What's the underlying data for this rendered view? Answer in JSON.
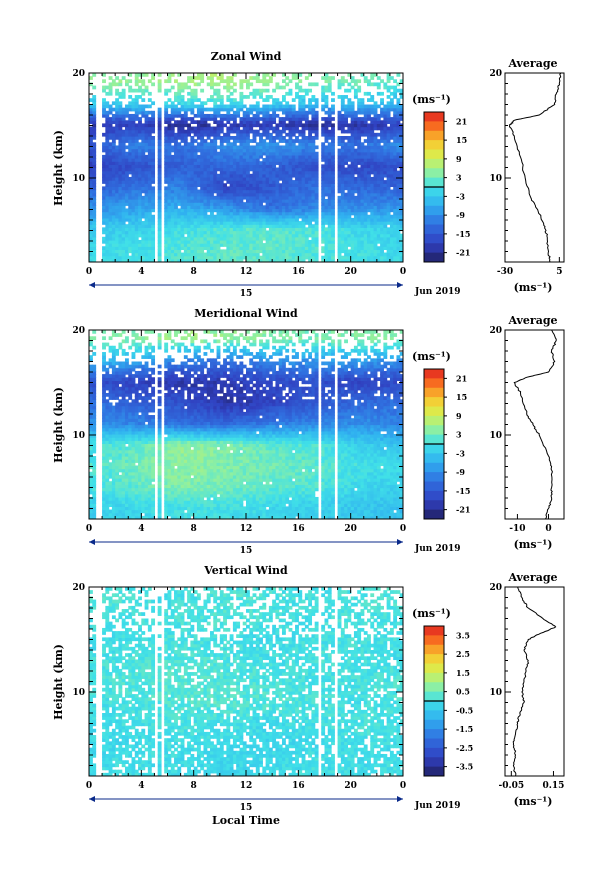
{
  "panels": [
    {
      "title": "Zonal Wind",
      "ylabel": "Height (km)",
      "unit": "(ms⁻¹)",
      "colorbar_ticks": [
        "21",
        "15",
        "9",
        "3",
        "-3",
        "-9",
        "-15",
        "-21"
      ],
      "avg_title": "Average",
      "avg_xticks": [
        "-30",
        "5"
      ],
      "avg_unit": "(ms⁻¹)"
    },
    {
      "title": "Meridional Wind",
      "ylabel": "Height (km)",
      "unit": "(ms⁻¹)",
      "colorbar_ticks": [
        "21",
        "15",
        "9",
        "3",
        "-3",
        "-9",
        "-15",
        "-21"
      ],
      "avg_title": "Average",
      "avg_xticks": [
        "-10",
        "0"
      ],
      "avg_unit": "(ms⁻¹)"
    },
    {
      "title": "Vertical Wind",
      "ylabel": "Height (km)",
      "unit": "(ms⁻¹)",
      "colorbar_ticks": [
        "3.5",
        "2.5",
        "1.5",
        "0.5",
        "-0.5",
        "-1.5",
        "-2.5",
        "-3.5"
      ],
      "avg_title": "Average",
      "avg_xticks": [
        "-0.05",
        "0.15"
      ],
      "avg_unit": "(ms⁻¹)"
    }
  ],
  "xlabel": "Local Time",
  "date_label": "Jun 2019",
  "day_label": "15",
  "x_ticks": [
    "0",
    "4",
    "8",
    "12",
    "16",
    "20",
    "0"
  ],
  "y_ticks": [
    "20",
    "10"
  ],
  "chart_data": [
    {
      "type": "heatmap",
      "title": "Zonal Wind",
      "xlabel": "Local Time",
      "ylabel": "Height (km)",
      "xlim": [
        0,
        24
      ],
      "ylim": [
        2,
        20
      ],
      "colorbar_range": [
        -24,
        24
      ],
      "grid": false,
      "data_gaps_hours": [
        [
          0.6,
          0.9
        ],
        [
          4.9,
          5.15
        ],
        [
          5.5,
          5.75
        ],
        [
          17.5,
          17.75
        ],
        [
          18.7,
          19.0
        ]
      ],
      "rows": [
        {
          "h": 19,
          "v": [
            5,
            5,
            6,
            7,
            5,
            4,
            3,
            2
          ]
        },
        {
          "h": 17,
          "v": [
            -3,
            -2,
            -1,
            0,
            -2,
            -4,
            -3,
            -5
          ]
        },
        {
          "h": 15,
          "v": [
            -20,
            -18,
            -22,
            -20,
            -19,
            -21,
            -20,
            -18
          ]
        },
        {
          "h": 13,
          "v": [
            -15,
            -10,
            -12,
            -9,
            -8,
            -10,
            -12,
            -8
          ]
        },
        {
          "h": 11,
          "v": [
            -18,
            -16,
            -14,
            -13,
            -14,
            -16,
            -17,
            -16
          ]
        },
        {
          "h": 9,
          "v": [
            -14,
            -12,
            -10,
            -18,
            -15,
            -12,
            -13,
            -14
          ]
        },
        {
          "h": 7,
          "v": [
            -9,
            -7,
            -6,
            -8,
            -12,
            -10,
            -9,
            -8
          ]
        },
        {
          "h": 5,
          "v": [
            -3,
            -2,
            0,
            1,
            2,
            1,
            -1,
            -2
          ]
        },
        {
          "h": 3,
          "v": [
            -1,
            0,
            1,
            2,
            2,
            1,
            0,
            -1
          ]
        }
      ],
      "average_profile": {
        "title": "Average",
        "xlim": [
          -30,
          8
        ],
        "points": [
          [
            6,
            20
          ],
          [
            5,
            19
          ],
          [
            3,
            18
          ],
          [
            2,
            17
          ],
          [
            -8,
            16
          ],
          [
            -24,
            15.5
          ],
          [
            -27,
            15
          ],
          [
            -24,
            14
          ],
          [
            -20,
            12
          ],
          [
            -17,
            10
          ],
          [
            -13,
            8
          ],
          [
            -9,
            7
          ],
          [
            -5,
            5.5
          ],
          [
            -3,
            4.5
          ],
          [
            -2,
            3
          ],
          [
            -1,
            2
          ]
        ]
      }
    },
    {
      "type": "heatmap",
      "title": "Meridional Wind",
      "xlabel": "Local Time",
      "ylabel": "Height (km)",
      "xlim": [
        0,
        24
      ],
      "ylim": [
        2,
        20
      ],
      "colorbar_range": [
        -24,
        24
      ],
      "grid": false,
      "data_gaps_hours": [
        [
          0.6,
          0.9
        ],
        [
          4.9,
          5.15
        ],
        [
          5.5,
          5.75
        ],
        [
          17.5,
          17.75
        ],
        [
          18.7,
          19.0
        ]
      ],
      "rows": [
        {
          "h": 19,
          "v": [
            3,
            4,
            6,
            5,
            4,
            3,
            5,
            4
          ]
        },
        {
          "h": 17,
          "v": [
            -4,
            -6,
            -10,
            -12,
            -9,
            -8,
            -7,
            -9
          ]
        },
        {
          "h": 15,
          "v": [
            -16,
            -18,
            -20,
            -19,
            -17,
            -16,
            -18,
            -17
          ]
        },
        {
          "h": 13,
          "v": [
            -12,
            -14,
            -16,
            -20,
            -18,
            -15,
            -13,
            -12
          ]
        },
        {
          "h": 11,
          "v": [
            -9,
            -10,
            -12,
            -13,
            -11,
            -10,
            -9,
            -10
          ]
        },
        {
          "h": 9,
          "v": [
            0,
            2,
            5,
            4,
            2,
            1,
            -2,
            -4
          ]
        },
        {
          "h": 7,
          "v": [
            1,
            3,
            5,
            4,
            3,
            2,
            0,
            -1
          ]
        },
        {
          "h": 5,
          "v": [
            0,
            2,
            4,
            3,
            2,
            1,
            -1,
            -2
          ]
        },
        {
          "h": 3,
          "v": [
            -2,
            -1,
            0,
            0,
            -1,
            -2,
            -3,
            -4
          ]
        }
      ],
      "average_profile": {
        "title": "Average",
        "xlim": [
          -14,
          5
        ],
        "points": [
          [
            1,
            20
          ],
          [
            2.5,
            19
          ],
          [
            1,
            18
          ],
          [
            2,
            17
          ],
          [
            0,
            16
          ],
          [
            -7,
            15.5
          ],
          [
            -11,
            15
          ],
          [
            -9,
            14
          ],
          [
            -7,
            12
          ],
          [
            -5,
            11
          ],
          [
            -3,
            10
          ],
          [
            0,
            8
          ],
          [
            1,
            7
          ],
          [
            1,
            5
          ],
          [
            1,
            4
          ],
          [
            0,
            3
          ],
          [
            -1,
            2
          ]
        ]
      }
    },
    {
      "type": "heatmap",
      "title": "Vertical Wind",
      "xlabel": "Local Time",
      "ylabel": "Height (km)",
      "xlim": [
        0,
        24
      ],
      "ylim": [
        2,
        20
      ],
      "colorbar_range": [
        -4,
        4
      ],
      "grid": false,
      "data_gaps_hours": [
        [
          0.6,
          0.9
        ],
        [
          4.9,
          5.15
        ],
        [
          5.5,
          5.75
        ],
        [
          17.5,
          17.75
        ],
        [
          18.7,
          19.0
        ]
      ],
      "rows": [
        {
          "h": 19,
          "v": [
            0.2,
            0.1,
            0.0,
            0.2,
            0.1,
            0.0,
            0.1,
            0.2
          ]
        },
        {
          "h": 17,
          "v": [
            0.1,
            0.0,
            0.1,
            0.2,
            0.1,
            0.0,
            0.1,
            0.0
          ]
        },
        {
          "h": 15,
          "v": [
            -0.1,
            0.0,
            0.1,
            0.0,
            -0.1,
            0.0,
            0.1,
            0.0
          ]
        },
        {
          "h": 13,
          "v": [
            0.0,
            0.1,
            0.2,
            0.1,
            0.0,
            0.1,
            0.0,
            -0.1
          ]
        },
        {
          "h": 11,
          "v": [
            0.1,
            0.2,
            0.3,
            0.2,
            0.1,
            0.0,
            0.1,
            0.2
          ]
        },
        {
          "h": 9,
          "v": [
            0.0,
            0.1,
            0.2,
            0.3,
            0.2,
            0.1,
            0.0,
            0.1
          ]
        },
        {
          "h": 7,
          "v": [
            -0.1,
            0.0,
            0.1,
            0.0,
            -0.1,
            0.0,
            0.1,
            0.0
          ]
        },
        {
          "h": 5,
          "v": [
            -0.2,
            -0.1,
            0.0,
            -0.1,
            -0.2,
            -0.1,
            0.0,
            -0.1
          ]
        },
        {
          "h": 3,
          "v": [
            -0.1,
            0.0,
            -0.1,
            -0.2,
            -0.1,
            0.0,
            -0.1,
            0.0
          ]
        }
      ],
      "average_profile": {
        "title": "Average",
        "xlim": [
          -0.08,
          0.2
        ],
        "points": [
          [
            -0.02,
            20
          ],
          [
            0.0,
            19
          ],
          [
            0.03,
            18
          ],
          [
            0.1,
            17
          ],
          [
            0.16,
            16.2
          ],
          [
            0.08,
            15.5
          ],
          [
            0.03,
            15
          ],
          [
            0.01,
            14
          ],
          [
            0.03,
            13
          ],
          [
            0.02,
            12
          ],
          [
            0.01,
            11
          ],
          [
            0.0,
            10
          ],
          [
            0.01,
            9
          ],
          [
            -0.01,
            8
          ],
          [
            -0.02,
            7
          ],
          [
            -0.03,
            6
          ],
          [
            -0.04,
            5
          ],
          [
            -0.03,
            4
          ],
          [
            -0.04,
            3
          ],
          [
            -0.03,
            2
          ]
        ]
      }
    }
  ]
}
